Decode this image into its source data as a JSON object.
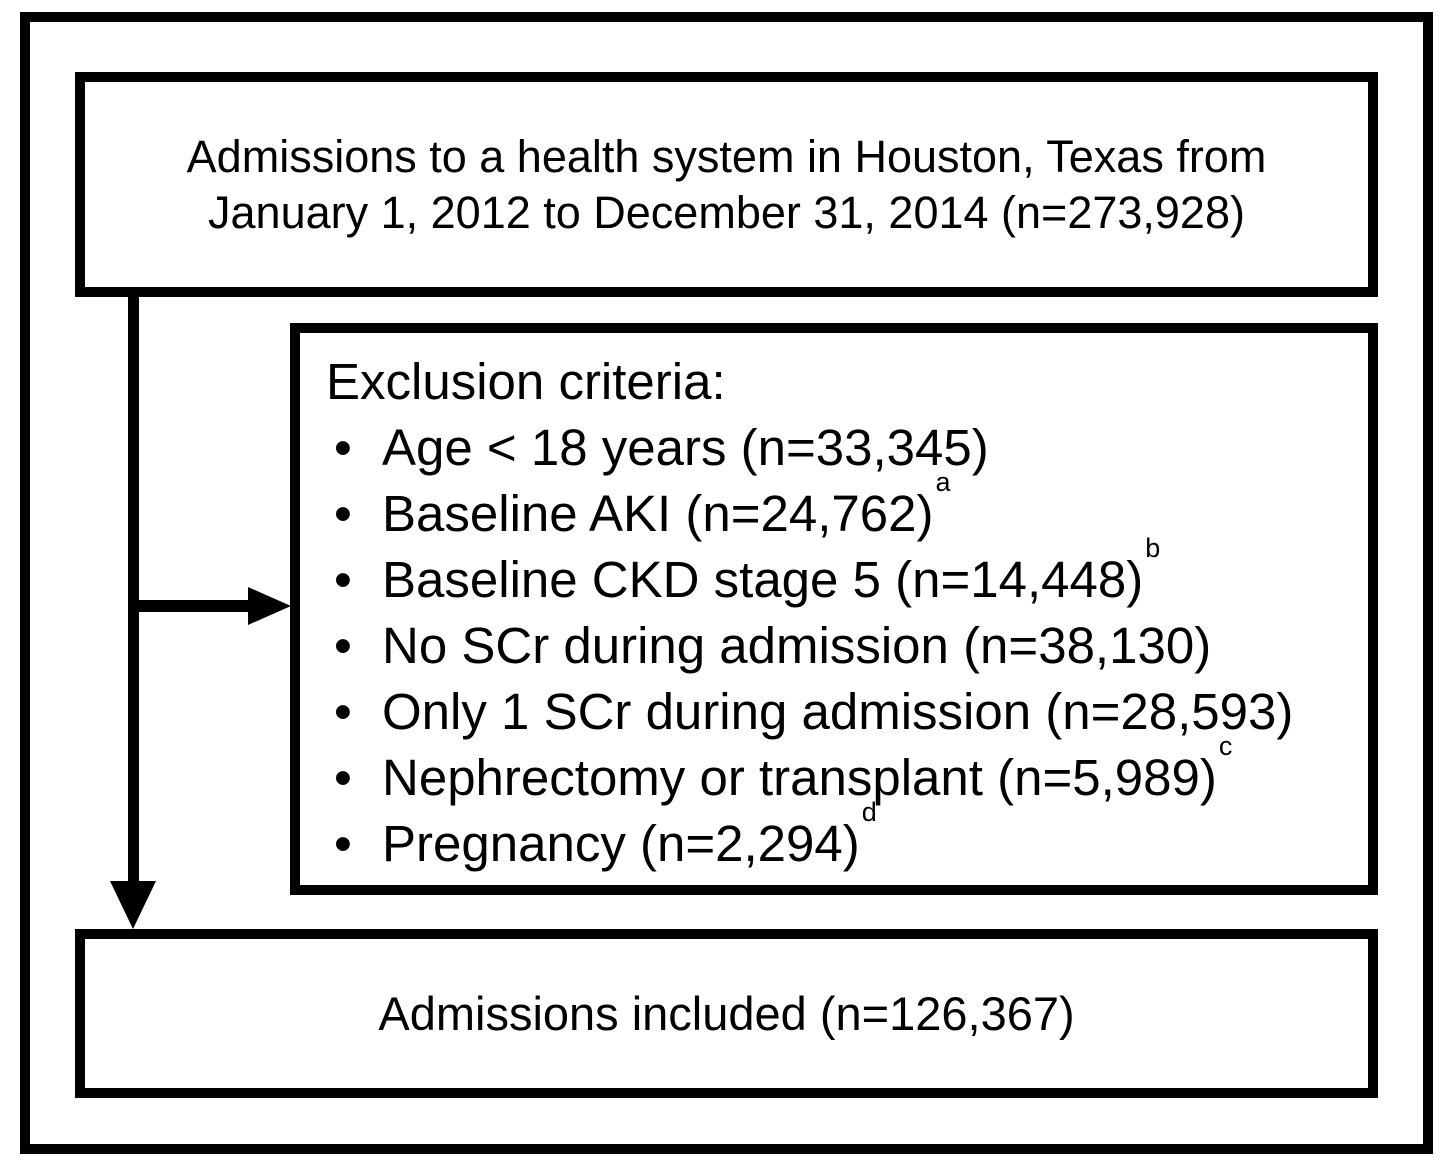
{
  "top_box": {
    "line1": "Admissions to a health system in Houston, Texas from",
    "line2": "January 1, 2012 to December 31, 2014 (n=273,928)"
  },
  "exclusion_box": {
    "heading": "Exclusion criteria:",
    "items": [
      {
        "text": "Age < 18 years (n=33,345)",
        "sup": ""
      },
      {
        "text": "Baseline AKI (n=24,762)",
        "sup": "a"
      },
      {
        "text": "Baseline CKD stage 5 (n=14,448)",
        "sup": "b"
      },
      {
        "text": "No SCr during admission (n=38,130)",
        "sup": ""
      },
      {
        "text": "Only 1 SCr during admission (n=28,593)",
        "sup": ""
      },
      {
        "text": "Nephrectomy or transplant (n=5,989)",
        "sup": "c"
      },
      {
        "text": "Pregnancy (n=2,294)",
        "sup": "d"
      }
    ]
  },
  "bottom_box": {
    "text": "Admissions included (n=126,367)"
  },
  "colors": {
    "line": "#000000",
    "background": "#ffffff",
    "text": "#000000"
  }
}
